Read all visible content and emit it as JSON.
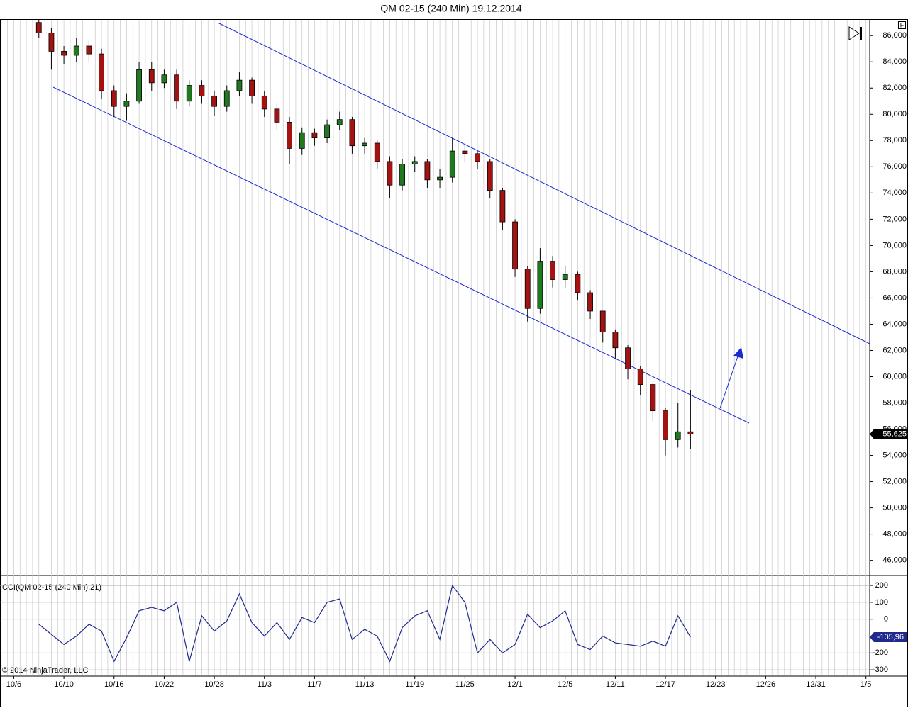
{
  "chart_data": [
    {
      "type": "candlestick",
      "title": "QM 02-15 (240 Min)  19.12.2014",
      "x": [
        2,
        3,
        4,
        5,
        6,
        7,
        8,
        9,
        10,
        11,
        12,
        13,
        14,
        15,
        16,
        17,
        18,
        19,
        20,
        21,
        22,
        23,
        24,
        25,
        26,
        27,
        28,
        29,
        30,
        31,
        32,
        33,
        34,
        35,
        36,
        37,
        38,
        39,
        40,
        41,
        42,
        43,
        44,
        45,
        46,
        47,
        48,
        49,
        50,
        51,
        52,
        53,
        54
      ],
      "open": [
        87.0,
        86.2,
        84.8,
        84.5,
        85.2,
        84.6,
        81.8,
        80.6,
        81.0,
        83.4,
        82.4,
        83.0,
        81.0,
        82.2,
        81.4,
        80.6,
        81.8,
        82.6,
        81.4,
        80.4,
        79.4,
        77.4,
        78.6,
        78.2,
        79.2,
        79.6,
        77.6,
        77.8,
        76.4,
        74.6,
        76.2,
        76.4,
        75.0,
        75.2,
        77.2,
        77.0,
        76.4,
        74.2,
        71.8,
        68.2,
        65.2,
        68.8,
        67.4,
        67.8,
        66.4,
        65.0,
        63.4,
        62.2,
        60.6,
        59.4,
        57.4,
        55.2,
        55.8
      ],
      "high": [
        87.2,
        86.6,
        85.2,
        85.8,
        85.6,
        85.0,
        82.2,
        81.6,
        84.0,
        84.0,
        83.4,
        83.4,
        82.6,
        82.6,
        81.8,
        82.2,
        83.2,
        82.8,
        81.8,
        80.8,
        79.8,
        79.0,
        78.9,
        79.6,
        80.2,
        79.8,
        78.2,
        78.0,
        76.8,
        76.6,
        76.8,
        76.6,
        75.8,
        78.2,
        77.6,
        77.2,
        76.6,
        74.4,
        72.0,
        68.4,
        69.8,
        69.2,
        68.4,
        68.0,
        66.6,
        65.0,
        63.6,
        62.4,
        60.8,
        59.6,
        57.6,
        58.0,
        59.0
      ],
      "low": [
        85.8,
        83.4,
        83.8,
        84.0,
        84.0,
        81.2,
        79.8,
        79.5,
        80.8,
        81.8,
        82.0,
        80.4,
        80.6,
        80.8,
        79.9,
        80.2,
        81.4,
        80.8,
        79.8,
        78.8,
        76.2,
        76.9,
        77.6,
        77.8,
        78.8,
        77.0,
        77.0,
        75.8,
        73.6,
        74.2,
        75.6,
        74.4,
        74.4,
        74.8,
        76.4,
        75.8,
        73.6,
        71.2,
        67.6,
        64.2,
        64.8,
        66.8,
        66.8,
        65.8,
        64.4,
        62.6,
        61.4,
        59.8,
        58.6,
        56.6,
        54.0,
        54.6,
        54.5
      ],
      "close": [
        86.2,
        84.8,
        84.5,
        85.2,
        84.6,
        81.8,
        80.6,
        81.0,
        83.4,
        82.4,
        83.0,
        81.0,
        82.2,
        81.4,
        80.6,
        81.8,
        82.6,
        81.4,
        80.4,
        79.4,
        77.4,
        78.6,
        78.2,
        79.2,
        79.6,
        77.6,
        77.8,
        76.4,
        74.6,
        76.2,
        76.4,
        75.0,
        75.2,
        77.2,
        77.0,
        76.4,
        74.2,
        71.8,
        68.2,
        65.2,
        68.8,
        67.4,
        67.8,
        66.4,
        65.0,
        63.4,
        62.2,
        60.6,
        59.4,
        57.4,
        55.2,
        55.8,
        55.625
      ],
      "last_price": {
        "value": 55.625,
        "label": "55,625"
      },
      "up_color": "#1f7a1f",
      "down_color": "#a51212",
      "xlim": [
        -1.1,
        68.3
      ],
      "ylim": [
        44.9,
        87.2
      ],
      "yticks": [
        {
          "value": 46,
          "label": "46,000"
        },
        {
          "value": 48,
          "label": "48,000"
        },
        {
          "value": 50,
          "label": "50,000"
        },
        {
          "value": 52,
          "label": "52,000"
        },
        {
          "value": 54,
          "label": "54,000"
        },
        {
          "value": 56,
          "label": "56,000"
        },
        {
          "value": 58,
          "label": "58,000"
        },
        {
          "value": 60,
          "label": "60,000"
        },
        {
          "value": 62,
          "label": "62,000"
        },
        {
          "value": 64,
          "label": "64,000"
        },
        {
          "value": 66,
          "label": "66,000"
        },
        {
          "value": 68,
          "label": "68,000"
        },
        {
          "value": 70,
          "label": "70,000"
        },
        {
          "value": 72,
          "label": "72,000"
        },
        {
          "value": 74,
          "label": "74,000"
        },
        {
          "value": 76,
          "label": "76,000"
        },
        {
          "value": 78,
          "label": "78,000"
        },
        {
          "value": 80,
          "label": "80,000"
        },
        {
          "value": 82,
          "label": "82,000"
        },
        {
          "value": 84,
          "label": "84,000"
        },
        {
          "value": 86,
          "label": "86,000"
        }
      ]
    },
    {
      "type": "line",
      "title": "CCI(QM 02-15 (240 Min),21)",
      "footer": "© 2014 NinjaTrader, LLC",
      "x": [
        2,
        3,
        4,
        5,
        6,
        7,
        8,
        9,
        10,
        11,
        12,
        13,
        14,
        15,
        16,
        17,
        18,
        19,
        20,
        21,
        22,
        23,
        24,
        25,
        26,
        27,
        28,
        29,
        30,
        31,
        32,
        33,
        34,
        35,
        36,
        37,
        38,
        39,
        40,
        41,
        42,
        43,
        44,
        45,
        46,
        47,
        48,
        49,
        50,
        51,
        52,
        53,
        54
      ],
      "values": [
        -30,
        -90,
        -150,
        -100,
        -30,
        -70,
        -250,
        -110,
        50,
        70,
        50,
        100,
        -250,
        20,
        -70,
        -10,
        150,
        -20,
        -100,
        -20,
        -120,
        10,
        -20,
        100,
        120,
        -120,
        -60,
        -100,
        -250,
        -50,
        20,
        50,
        -120,
        200,
        100,
        -200,
        -120,
        -200,
        -150,
        30,
        -50,
        -10,
        50,
        -150,
        -180,
        -100,
        -140,
        -150,
        -160,
        -130,
        -160,
        20,
        -105.96
      ],
      "last_value": {
        "value": -105.96,
        "label": "-105,96"
      },
      "color": "#1f2a8c",
      "xlim": [
        -1.1,
        68.3
      ],
      "ylim": [
        -333,
        255
      ],
      "yticks": [
        200,
        100,
        0,
        -200,
        -300
      ],
      "xticks": [
        {
          "value": 0,
          "label": "10/6"
        },
        {
          "value": 4,
          "label": "10/10"
        },
        {
          "value": 8,
          "label": "10/16"
        },
        {
          "value": 12,
          "label": "10/22"
        },
        {
          "value": 16,
          "label": "10/28"
        },
        {
          "value": 20,
          "label": "11/3"
        },
        {
          "value": 24,
          "label": "11/7"
        },
        {
          "value": 28,
          "label": "11/13"
        },
        {
          "value": 32,
          "label": "11/19"
        },
        {
          "value": 36,
          "label": "11/25"
        },
        {
          "value": 40,
          "label": "12/1"
        },
        {
          "value": 44,
          "label": "12/5"
        },
        {
          "value": 48,
          "label": "12/11"
        },
        {
          "value": 52,
          "label": "12/17"
        },
        {
          "value": 56,
          "label": "12/23"
        },
        {
          "value": 60,
          "label": "12/26"
        },
        {
          "value": 64,
          "label": "12/31"
        },
        {
          "value": 68,
          "label": "1/5"
        }
      ]
    }
  ]
}
